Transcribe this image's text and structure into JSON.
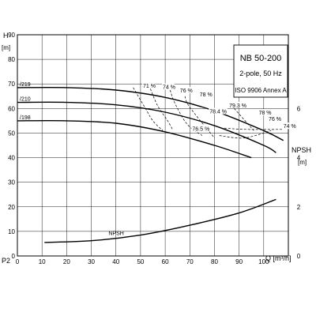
{
  "chart_data": {
    "type": "line",
    "left_axis": {
      "title": "H",
      "unit": "[m]",
      "range": [
        0,
        90
      ],
      "ticks": [
        "0",
        "10",
        "20",
        "30",
        "40",
        "50",
        "60",
        "70",
        "80",
        "90"
      ]
    },
    "right_axis": {
      "title": "NPSH",
      "unit": "[m]",
      "range": [
        0,
        9
      ],
      "ticks": [
        "0",
        "2",
        "4",
        "6"
      ]
    },
    "x_axis": {
      "title": "Q [m³/h]",
      "range": [
        0,
        110
      ],
      "ticks": [
        "0",
        "10",
        "20",
        "30",
        "40",
        "50",
        "60",
        "70",
        "80",
        "90",
        "100"
      ]
    },
    "bottom_label": "P2",
    "grid": true,
    "info_box": {
      "model": "NB 50-200",
      "poles": "2-pole, 50 Hz",
      "standard": "ISO 9906 Annex A"
    },
    "series": [
      {
        "name": "/219",
        "axis": "H",
        "x": [
          0,
          20,
          40,
          60,
          80,
          100,
          108
        ],
        "y": [
          68.5,
          68.5,
          67.5,
          64.5,
          59,
          51,
          47
        ]
      },
      {
        "name": "/210",
        "axis": "H",
        "x": [
          0,
          20,
          40,
          60,
          80,
          100,
          105
        ],
        "y": [
          62.5,
          62.5,
          61.5,
          58.5,
          53,
          45,
          42
        ]
      },
      {
        "name": "/198",
        "axis": "H",
        "x": [
          0,
          20,
          40,
          60,
          80,
          95
        ],
        "y": [
          55,
          55,
          54,
          50.5,
          45,
          40
        ]
      },
      {
        "name": "NPSH",
        "axis": "NPSH",
        "x": [
          11,
          30,
          50,
          70,
          90,
          105
        ],
        "y": [
          0.55,
          0.62,
          0.85,
          1.25,
          1.75,
          2.3
        ]
      }
    ],
    "efficiency_labels": [
      {
        "label": "71 %",
        "x": 51,
        "y": 68.5
      },
      {
        "label": "74 %",
        "x": 59,
        "y": 68
      },
      {
        "label": "76 %",
        "x": 66,
        "y": 66.5
      },
      {
        "label": "78 %",
        "x": 74,
        "y": 65
      },
      {
        "label": "79.3 %",
        "x": 86,
        "y": 60.5
      },
      {
        "label": "78.4 %",
        "x": 78,
        "y": 58
      },
      {
        "label": "76.5 %",
        "x": 71,
        "y": 51
      },
      {
        "label": "78 %",
        "x": 98,
        "y": 57.5
      },
      {
        "label": "76 %",
        "x": 102,
        "y": 55
      },
      {
        "label": "74 %",
        "x": 108,
        "y": 52
      }
    ],
    "efficiency_contours": [
      {
        "x": [
          47,
          52,
          55,
          59
        ],
        "y": [
          68.5,
          60,
          55,
          51
        ]
      },
      {
        "x": [
          54,
          57,
          61,
          63
        ],
        "y": [
          68,
          61,
          55,
          51.5
        ]
      },
      {
        "x": [
          62,
          64,
          69,
          75
        ],
        "y": [
          67.5,
          62,
          53.5,
          49
        ]
      },
      {
        "x": [
          68,
          70,
          80
        ],
        "y": [
          65,
          60.5,
          48
        ]
      },
      {
        "x": [
          84,
          93,
          108
        ],
        "y": [
          52,
          51.5,
          51.5
        ]
      },
      {
        "x": [
          82,
          92,
          103
        ],
        "y": [
          49,
          48,
          51
        ]
      },
      {
        "x": [
          88,
          96
        ],
        "y": [
          60,
          51
        ]
      }
    ]
  }
}
